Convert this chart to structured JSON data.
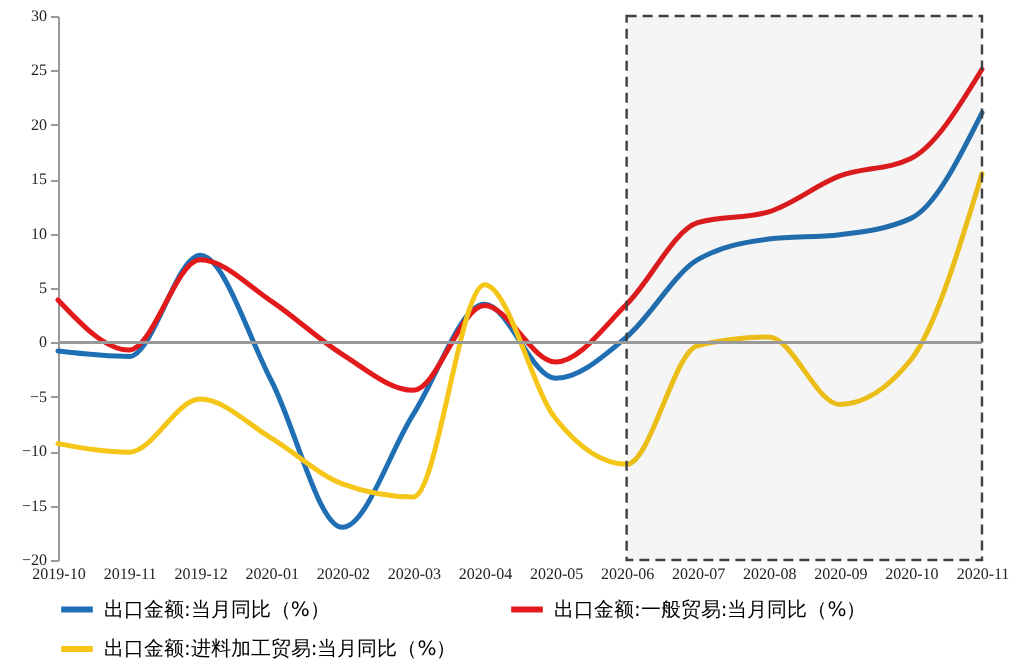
{
  "chart_data": {
    "type": "line",
    "categories": [
      "2019-10",
      "2019-11",
      "2019-12",
      "2020-01",
      "2020-02",
      "2020-03",
      "2020-04",
      "2020-05",
      "2020-06",
      "2020-07",
      "2020-08",
      "2020-09",
      "2020-10",
      "2020-11"
    ],
    "series": [
      {
        "name": "出口金额:当月同比（%）",
        "color": "#1f6fb4",
        "values": [
          -0.8,
          -1.3,
          8.0,
          -3.5,
          -17.0,
          -6.6,
          3.5,
          -3.3,
          0.5,
          7.6,
          9.5,
          9.9,
          11.4,
          21.1
        ]
      },
      {
        "name": "出口金额:一般贸易:当月同比（%）",
        "color": "#e31a1c",
        "values": [
          3.9,
          -0.7,
          7.6,
          3.8,
          -1.1,
          -4.4,
          3.4,
          -1.8,
          3.5,
          11.0,
          12.0,
          15.3,
          16.9,
          25.1
        ]
      },
      {
        "name": "出口金额:进料加工贸易:当月同比（%）",
        "color": "#f5c518",
        "values": [
          -9.3,
          -10.1,
          -5.2,
          -8.8,
          -13.0,
          -14.2,
          5.3,
          -7.0,
          -11.2,
          -0.3,
          0.5,
          -5.7,
          -1.6,
          15.5
        ]
      }
    ],
    "ylim": [
      -20,
      30
    ],
    "yticks": [
      -20,
      -15,
      -10,
      -5,
      0,
      5,
      10,
      15,
      20,
      25,
      30
    ],
    "ref_lines": [
      {
        "axis": "y",
        "value": 0,
        "color": "#999999"
      }
    ],
    "bands": [
      {
        "axis": "x",
        "from": "2020-06",
        "to": "2020-11",
        "color": "#404040"
      }
    ],
    "legend": "bottom",
    "grid": false,
    "marker": "none",
    "line_style": "solid"
  }
}
